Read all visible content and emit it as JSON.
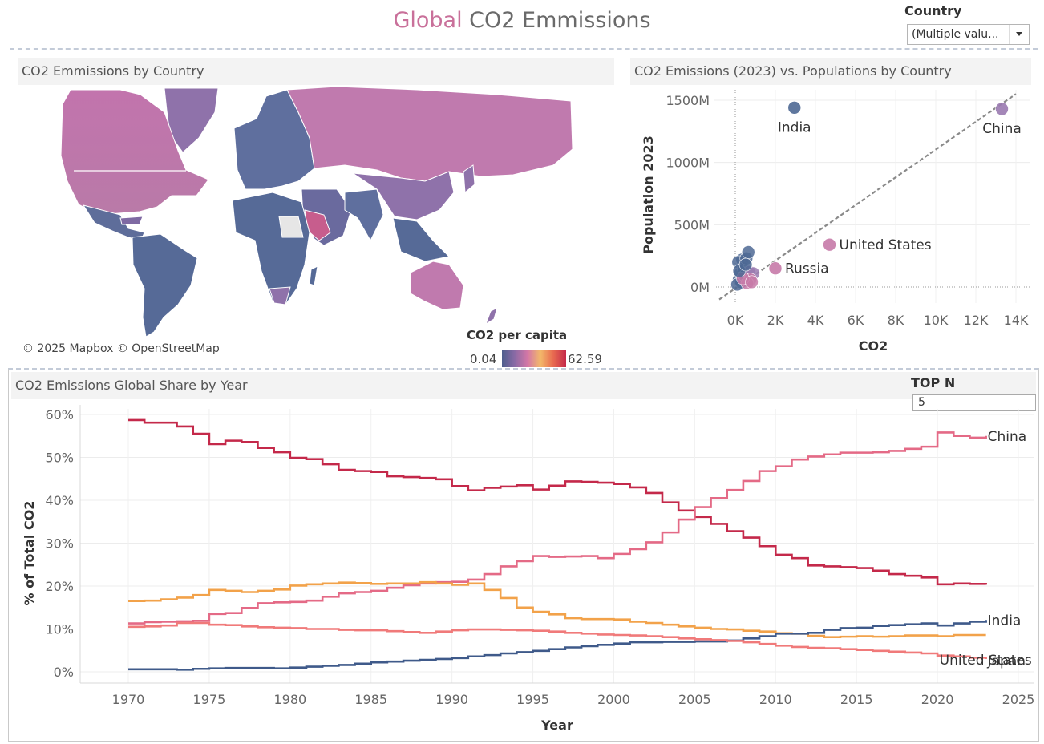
{
  "header": {
    "title_accent": "Global",
    "title_rest": " CO2 Emmissions",
    "filter_label": "Country",
    "filter_value": "(Multiple valu..."
  },
  "map_panel": {
    "title": "CO2 Emmissions by Country",
    "credit": "© 2025 Mapbox © OpenStreetMap",
    "legend_title": "CO2 per capita",
    "legend_min": "0.04",
    "legend_max": "62.59"
  },
  "scatter_panel": {
    "title": "CO2 Emissions (2023) vs. Populations by Country"
  },
  "line_panel": {
    "title": "CO2 Emissions Global Share by Year",
    "topn_label": "TOP N",
    "topn_value": "5"
  },
  "colors": {
    "accent": "#c9709a",
    "rest_of_world": "#c4294a",
    "china": "#e46a86",
    "united_states": "#f2a24a",
    "india": "#3f5a8a",
    "japan": "#f07a7a",
    "russia": "#7c66a8",
    "scatter_blue": "#4e6894",
    "scatter_purple": "#9a7ab0",
    "scatter_pink": "#c77aa8"
  },
  "chart_data": [
    {
      "type": "scatter",
      "title": "CO2 Emissions (2023) vs. Populations by Country",
      "xlabel": "CO2",
      "ylabel": "Population 2023",
      "xlim": [
        0,
        14000
      ],
      "ylim": [
        0,
        1500
      ],
      "xticks": [
        0,
        2000,
        4000,
        6000,
        8000,
        10000,
        12000,
        14000
      ],
      "xtick_labels": [
        "0K",
        "2K",
        "4K",
        "6K",
        "8K",
        "10K",
        "12K",
        "14K"
      ],
      "yticks": [
        0,
        500,
        1000,
        1500
      ],
      "ytick_labels": [
        "0M",
        "500M",
        "1000M",
        "1500M"
      ],
      "trend_line": [
        [
          -800,
          -100
        ],
        [
          14000,
          1550
        ]
      ],
      "labeled_points": [
        {
          "label": "India",
          "x": 2950,
          "y": 1440,
          "color": "#4e6894",
          "label_pos": "below"
        },
        {
          "label": "China",
          "x": 13300,
          "y": 1430,
          "color": "#9a7ab0",
          "label_pos": "below"
        },
        {
          "label": "United States",
          "x": 4700,
          "y": 340,
          "color": "#c77aa8",
          "label_pos": "right"
        },
        {
          "label": "Russia",
          "x": 2000,
          "y": 150,
          "color": "#c77aa8",
          "label_pos": "right"
        }
      ],
      "cluster_points": [
        {
          "x": 180,
          "y": 60,
          "color": "#4e6894"
        },
        {
          "x": 250,
          "y": 110,
          "color": "#4e6894"
        },
        {
          "x": 350,
          "y": 220,
          "color": "#4e6894"
        },
        {
          "x": 150,
          "y": 200,
          "color": "#4e6894"
        },
        {
          "x": 420,
          "y": 150,
          "color": "#4e6894"
        },
        {
          "x": 300,
          "y": 40,
          "color": "#4e6894"
        },
        {
          "x": 550,
          "y": 230,
          "color": "#4e6894"
        },
        {
          "x": 650,
          "y": 280,
          "color": "#4e6894"
        },
        {
          "x": 100,
          "y": 20,
          "color": "#4e6894"
        },
        {
          "x": 480,
          "y": 90,
          "color": "#4e6894"
        },
        {
          "x": 700,
          "y": 120,
          "color": "#9a7ab0"
        },
        {
          "x": 900,
          "y": 110,
          "color": "#9a7ab0"
        },
        {
          "x": 750,
          "y": 60,
          "color": "#c77aa8"
        },
        {
          "x": 600,
          "y": 30,
          "color": "#c77aa8"
        },
        {
          "x": 380,
          "y": 70,
          "color": "#c77aa8"
        },
        {
          "x": 820,
          "y": 40,
          "color": "#c77aa8"
        },
        {
          "x": 200,
          "y": 130,
          "color": "#4e6894"
        },
        {
          "x": 520,
          "y": 180,
          "color": "#4e6894"
        }
      ]
    },
    {
      "type": "line",
      "title": "CO2 Emissions Global Share by Year",
      "xlabel": "Year",
      "ylabel": "% of Total CO2",
      "xlim": [
        1968,
        2025
      ],
      "ylim": [
        -2,
        62
      ],
      "xticks": [
        1970,
        1975,
        1980,
        1985,
        1990,
        1995,
        2000,
        2005,
        2010,
        2015,
        2020,
        2025
      ],
      "yticks": [
        0,
        10,
        20,
        30,
        40,
        50,
        60
      ],
      "ytick_labels": [
        "0%",
        "10%",
        "20%",
        "30%",
        "40%",
        "50%",
        "60%"
      ],
      "x": [
        1970,
        1971,
        1972,
        1973,
        1974,
        1975,
        1976,
        1977,
        1978,
        1979,
        1980,
        1981,
        1982,
        1983,
        1984,
        1985,
        1986,
        1987,
        1988,
        1989,
        1990,
        1991,
        1992,
        1993,
        1994,
        1995,
        1996,
        1997,
        1998,
        1999,
        2000,
        2001,
        2002,
        2003,
        2004,
        2005,
        2006,
        2007,
        2008,
        2009,
        2010,
        2011,
        2012,
        2013,
        2014,
        2015,
        2016,
        2017,
        2018,
        2019,
        2020,
        2021,
        2022,
        2023
      ],
      "series": [
        {
          "values": [
            58.7,
            58.1,
            58.1,
            57.2,
            55.5,
            53.1,
            53.9,
            53.6,
            52.2,
            51.2,
            49.9,
            49.6,
            48.4,
            47.1,
            46.8,
            46.6,
            45.6,
            45.4,
            45.2,
            44.9,
            43.3,
            42.3,
            42.9,
            43.2,
            43.5,
            42.5,
            43.4,
            44.4,
            44.3,
            44.1,
            43.8,
            43.0,
            41.7,
            39.5,
            37.6,
            36.1,
            34.5,
            32.8,
            31.3,
            29.3,
            27.3,
            26.5,
            24.8,
            24.6,
            24.4,
            24.2,
            23.6,
            22.8,
            22.4,
            22.0,
            20.4,
            20.6,
            20.5,
            20.3
          ],
          "color": "#c4294a"
        },
        {
          "name": "China",
          "values": [
            11.3,
            11.6,
            11.7,
            11.8,
            11.9,
            13.5,
            13.7,
            14.9,
            16.0,
            16.2,
            16.3,
            16.6,
            17.5,
            18.3,
            18.6,
            18.9,
            19.6,
            20.2,
            20.6,
            20.9,
            21.0,
            21.5,
            22.8,
            24.6,
            25.8,
            27.0,
            26.8,
            26.9,
            27.0,
            26.5,
            27.5,
            28.6,
            30.2,
            32.5,
            35.5,
            38.4,
            40.5,
            42.4,
            44.5,
            46.8,
            47.9,
            49.5,
            50.2,
            50.7,
            51.1,
            51.1,
            51.2,
            51.5,
            52.0,
            52.5,
            55.8,
            55.0,
            54.6,
            55.0
          ],
          "color": "#e46a86"
        },
        {
          "name": "United States",
          "values": [
            16.5,
            16.6,
            16.9,
            17.3,
            17.9,
            19.1,
            18.9,
            18.6,
            18.9,
            19.2,
            20.1,
            20.4,
            20.6,
            20.8,
            20.7,
            20.5,
            20.6,
            20.6,
            20.9,
            20.6,
            20.3,
            20.6,
            19.1,
            17.2,
            15.0,
            14.0,
            13.4,
            12.5,
            12.3,
            12.3,
            12.2,
            11.7,
            11.4,
            11.0,
            10.6,
            10.3,
            10.0,
            9.9,
            9.6,
            9.4,
            9.0,
            8.9,
            8.4,
            8.1,
            8.2,
            8.3,
            8.2,
            8.3,
            8.5,
            8.5,
            8.3,
            8.6,
            8.6,
            8.6
          ],
          "color": "#f2a24a"
        },
        {
          "name": "India",
          "values": [
            0.6,
            0.6,
            0.6,
            0.5,
            0.7,
            0.8,
            0.9,
            0.9,
            0.9,
            0.8,
            1.0,
            1.2,
            1.4,
            1.6,
            1.9,
            2.2,
            2.4,
            2.6,
            2.8,
            3.0,
            3.2,
            3.6,
            3.9,
            4.3,
            4.6,
            4.9,
            5.3,
            5.7,
            6.0,
            6.3,
            6.6,
            6.9,
            6.9,
            7.0,
            7.0,
            7.1,
            7.1,
            7.3,
            7.8,
            8.3,
            8.9,
            8.9,
            9.1,
            9.8,
            10.2,
            10.3,
            10.7,
            10.9,
            11.1,
            11.3,
            10.8,
            11.3,
            11.7,
            12.1
          ],
          "color": "#3f5a8a"
        },
        {
          "name": "Japan",
          "values": [
            10.5,
            10.6,
            10.8,
            11.4,
            11.4,
            11.0,
            10.9,
            10.6,
            10.4,
            10.3,
            10.2,
            10.0,
            10.0,
            9.8,
            9.7,
            9.7,
            9.5,
            9.3,
            9.1,
            9.4,
            9.7,
            9.9,
            9.9,
            9.8,
            9.7,
            9.6,
            9.4,
            9.1,
            8.9,
            8.7,
            8.6,
            8.5,
            8.3,
            8.1,
            7.8,
            7.6,
            7.4,
            7.2,
            6.9,
            6.5,
            6.1,
            5.8,
            5.6,
            5.5,
            5.3,
            5.1,
            4.9,
            4.7,
            4.5,
            4.3,
            3.8,
            3.6,
            3.3,
            3.0
          ],
          "color": "#f07a7a"
        }
      ],
      "end_labels": [
        "China",
        "United States",
        "India",
        "Japan"
      ]
    }
  ]
}
